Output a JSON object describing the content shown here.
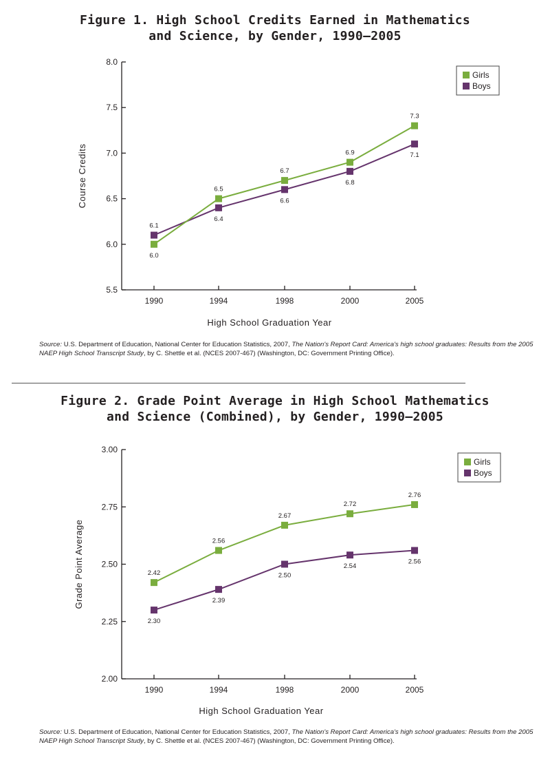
{
  "colors": {
    "girls": "#7aad3e",
    "boys": "#65346c",
    "axis": "#231f20"
  },
  "divider_label": "",
  "chart_data": [
    {
      "type": "line",
      "title_line1": "Figure 1. High School Credits Earned in Mathematics",
      "title_line2": "and Science, by Gender, 1990–2005",
      "xlabel": "High School Graduation Year",
      "ylabel": "Course Credits",
      "categories": [
        "1990",
        "1994",
        "1998",
        "2000",
        "2005"
      ],
      "ylim": [
        5.5,
        8.0
      ],
      "yticks": [
        "5.5",
        "6.0",
        "6.5",
        "7.0",
        "7.5",
        "8.0"
      ],
      "legend_position": "top-right",
      "series": [
        {
          "name": "Girls",
          "color": "#7aad3e",
          "values": [
            6.0,
            6.5,
            6.7,
            6.9,
            7.3
          ],
          "labels": [
            "6.0",
            "6.5",
            "6.7",
            "6.9",
            "7.3"
          ],
          "label_pos": [
            "below",
            "above",
            "above",
            "above",
            "above"
          ]
        },
        {
          "name": "Boys",
          "color": "#65346c",
          "values": [
            6.1,
            6.4,
            6.6,
            6.8,
            7.1
          ],
          "labels": [
            "6.1",
            "6.4",
            "6.6",
            "6.8",
            "7.1"
          ],
          "label_pos": [
            "above",
            "below",
            "below",
            "below",
            "below"
          ]
        }
      ],
      "source_prefix": "Source:",
      "source_text1": " U.S. Department of Education, National Center for Education Statistics, 2007, ",
      "source_italic": "The Nation's Report Card: America's high school graduates: Results from the 2005 NAEP High School Transcript Study",
      "source_text2": ", by C. Shettle  et al. (NCES 2007-467) (Washington, DC: Government Printing Office)."
    },
    {
      "type": "line",
      "title_line1": "Figure 2. Grade Point Average in High School Mathematics",
      "title_line2": "and Science (Combined), by Gender, 1990–2005",
      "xlabel": "High School Graduation Year",
      "ylabel": "Grade Point Average",
      "categories": [
        "1990",
        "1994",
        "1998",
        "2000",
        "2005"
      ],
      "ylim": [
        2.0,
        3.0
      ],
      "yticks": [
        "2.00",
        "2.25",
        "2.50",
        "2.75",
        "3.00"
      ],
      "legend_position": "top-right",
      "series": [
        {
          "name": "Girls",
          "color": "#7aad3e",
          "values": [
            2.42,
            2.56,
            2.67,
            2.72,
            2.76
          ],
          "labels": [
            "2.42",
            "2.56",
            "2.67",
            "2.72",
            "2.76"
          ],
          "label_pos": [
            "above",
            "above",
            "above",
            "above",
            "above"
          ]
        },
        {
          "name": "Boys",
          "color": "#65346c",
          "values": [
            2.3,
            2.39,
            2.5,
            2.54,
            2.56
          ],
          "labels": [
            "2.30",
            "2.39",
            "2.50",
            "2.54",
            "2.56"
          ],
          "label_pos": [
            "below",
            "below",
            "below",
            "below",
            "below"
          ]
        }
      ],
      "source_prefix": "Source:",
      "source_text1": " U.S. Department of Education, National Center for Education Statistics, 2007, ",
      "source_italic": "The Nation's Report Card: America's high school graduates: Results from the 2005 NAEP High School Transcript Study",
      "source_text2": ", by C. Shettle et al. (NCES 2007-467) (Washington, DC: Government Printing Office)."
    }
  ]
}
